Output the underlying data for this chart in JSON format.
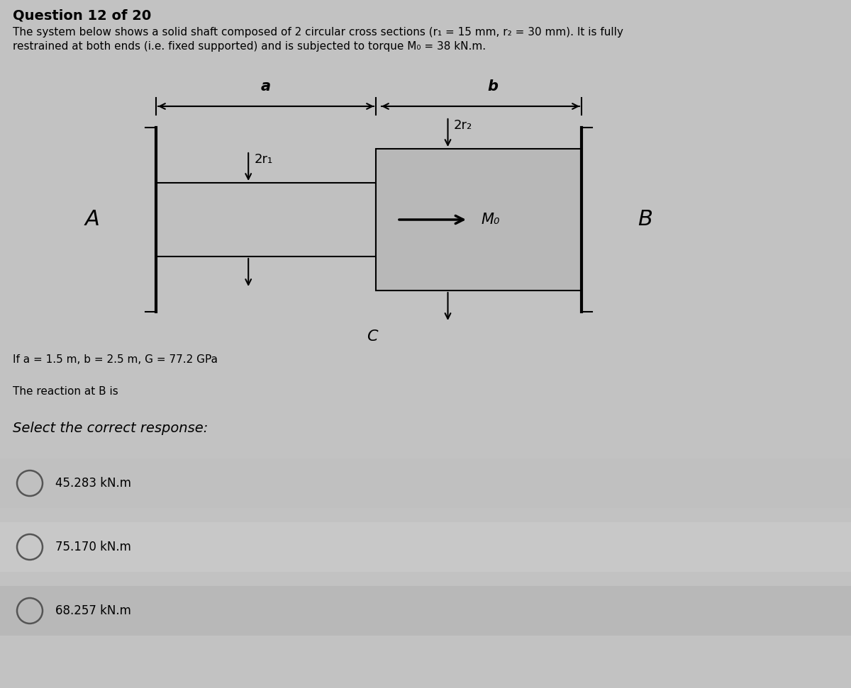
{
  "bg_color": "#c2c2c2",
  "diagram_bg": "#d8d8d8",
  "title": "Question 12 of 20",
  "description_line1": "The system below shows a solid shaft composed of 2 circular cross sections (r₁ = 15 mm, r₂ = 30 mm). It is fully",
  "description_line2": "restrained at both ends (i.e. fixed supported) and is subjected to torque M₀ = 38 kN.m.",
  "param_line": "If a = 1.5 m, b = 2.5 m, G = 77.2 GPa",
  "question_line": "The reaction at B is",
  "select_line": "Select the correct response:",
  "options": [
    "45.283 kN.m",
    "75.170 kN.m",
    "68.257 kN.m"
  ],
  "label_A": "A",
  "label_B": "B",
  "label_C": "C",
  "label_a": "a",
  "label_b": "b",
  "label_2r1": "2r₁",
  "label_2r2": "2r₂",
  "label_Mo": "M₀",
  "shaft1_color": "#c0c0c0",
  "shaft2_color": "#b8b8b8",
  "wall_color": "#404040",
  "line_color": "#000000",
  "text_color": "#000000",
  "option_bg_1": "#c8c8c8",
  "option_bg_2": "#d0d0d0",
  "title_fontsize": 14,
  "body_fontsize": 11,
  "diagram_fontsize": 12
}
